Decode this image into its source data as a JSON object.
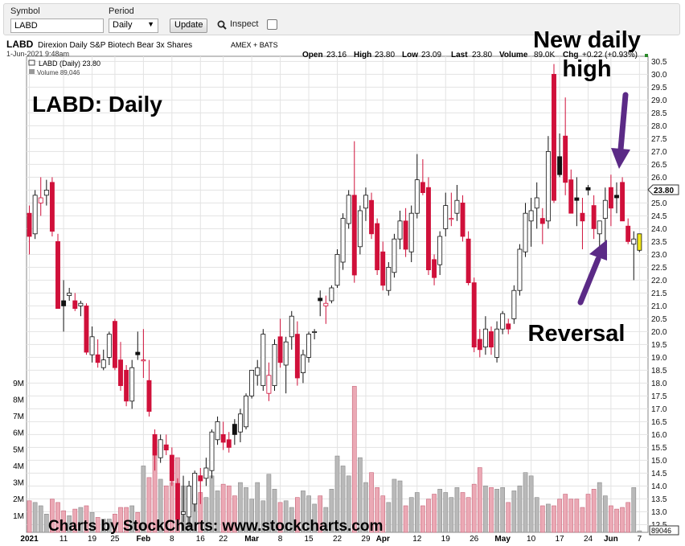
{
  "toolbar": {
    "symbol_label": "Symbol",
    "symbol_value": "LABD",
    "period_label": "Period",
    "period_value": "Daily",
    "update_label": "Update",
    "inspect_label": "Inspect"
  },
  "header": {
    "ticker": "LABD",
    "description": "Direxion Daily S&P Biotech Bear 3x Shares",
    "exchange": "AMEX + BATS",
    "datetime": "1-Jun-2021 9:48am",
    "open_label": "Open",
    "open": "23.16",
    "high_label": "High",
    "high": "23.80",
    "low_label": "Low",
    "low": "23.09",
    "last_label": "Last",
    "last": "23.80",
    "volume_label": "Volume",
    "volume": "89.0K",
    "chg_label": "Chg",
    "chg": "+0.22 (+0.93%)",
    "legend_price": "LABD (Daily) 23.80",
    "legend_volume": "Volume 89,046"
  },
  "annotations": {
    "big_title": "LABD:  Daily",
    "new_high_line1": "New daily",
    "new_high_line2": "high",
    "reversal": "Reversal",
    "watermark": "Charts by StockCharts:  www.stockcharts.com",
    "last_price_tag": "23.80",
    "last_volume_tag": "89046"
  },
  "colors": {
    "down": "#d0103a",
    "up_body": "#ffffff",
    "outline": "#111111",
    "vol_down": "#eba9b5",
    "vol_up": "#b9b9b9",
    "last_bar": "#f2e71a",
    "arrow": "#5b2a86",
    "grid": "#e3e3e3"
  },
  "chart_data": {
    "type": "candlestick",
    "title": "LABD",
    "y_range": [
      12.2,
      30.7
    ],
    "y_ticks": [
      12.5,
      13.0,
      13.5,
      14.0,
      14.5,
      15.0,
      15.5,
      16.0,
      16.5,
      17.0,
      17.5,
      18.0,
      18.5,
      19.0,
      19.5,
      20.0,
      20.5,
      21.0,
      21.5,
      22.0,
      22.5,
      23.0,
      23.5,
      24.0,
      24.5,
      25.0,
      25.5,
      26.0,
      26.5,
      27.0,
      27.5,
      28.0,
      28.5,
      29.0,
      29.5,
      30.0,
      30.5
    ],
    "volume_ticks": [
      "1M",
      "2M",
      "3M",
      "4M",
      "5M",
      "6M",
      "7M",
      "8M",
      "9M"
    ],
    "volume_tick_values": [
      1,
      2,
      3,
      4,
      5,
      6,
      7,
      8,
      9
    ],
    "volume_range": [
      0,
      9.4
    ],
    "x_labels": [
      {
        "label": "2021",
        "bar": 0
      },
      {
        "label": "11",
        "bar": 6
      },
      {
        "label": "19",
        "bar": 11
      },
      {
        "label": "25",
        "bar": 15
      },
      {
        "label": "Feb",
        "bar": 20
      },
      {
        "label": "8",
        "bar": 25
      },
      {
        "label": "16",
        "bar": 30
      },
      {
        "label": "22",
        "bar": 34
      },
      {
        "label": "Mar",
        "bar": 39
      },
      {
        "label": "8",
        "bar": 44
      },
      {
        "label": "15",
        "bar": 49
      },
      {
        "label": "22",
        "bar": 54
      },
      {
        "label": "29",
        "bar": 59
      },
      {
        "label": "Apr",
        "bar": 62
      },
      {
        "label": "12",
        "bar": 68
      },
      {
        "label": "19",
        "bar": 73
      },
      {
        "label": "26",
        "bar": 78
      },
      {
        "label": "May",
        "bar": 83
      },
      {
        "label": "10",
        "bar": 88
      },
      {
        "label": "17",
        "bar": 93
      },
      {
        "label": "24",
        "bar": 98
      },
      {
        "label": "Jun",
        "bar": 102
      },
      {
        "label": "7",
        "bar": 107
      }
    ],
    "total_slots": 109,
    "bars": [
      {
        "o": 24.6,
        "h": 24.9,
        "l": 23.0,
        "c": 23.7,
        "v": 1.9
      },
      {
        "o": 23.8,
        "h": 25.5,
        "l": 23.6,
        "c": 25.3,
        "v": 1.8
      },
      {
        "o": 25.0,
        "h": 26.0,
        "l": 24.5,
        "c": 25.2,
        "v": 1.6
      },
      {
        "o": 25.3,
        "h": 25.9,
        "l": 24.9,
        "c": 25.5,
        "v": 1.1
      },
      {
        "o": 25.8,
        "h": 26.0,
        "l": 23.7,
        "c": 23.9,
        "v": 2.0
      },
      {
        "o": 23.5,
        "h": 23.8,
        "l": 20.9,
        "c": 20.9,
        "v": 1.8
      },
      {
        "o": 21.2,
        "h": 22.0,
        "l": 20.0,
        "c": 21.0,
        "v": 1.3
      },
      {
        "o": 21.4,
        "h": 21.7,
        "l": 21.2,
        "c": 21.5,
        "v": 1.0
      },
      {
        "o": 21.2,
        "h": 21.5,
        "l": 20.8,
        "c": 20.9,
        "v": 1.4
      },
      {
        "o": 21.0,
        "h": 21.2,
        "l": 20.6,
        "c": 21.1,
        "v": 1.5
      },
      {
        "o": 21.0,
        "h": 21.1,
        "l": 19.1,
        "c": 19.2,
        "v": 1.6
      },
      {
        "o": 19.1,
        "h": 20.2,
        "l": 18.8,
        "c": 19.8,
        "v": 1.2
      },
      {
        "o": 19.1,
        "h": 19.7,
        "l": 18.6,
        "c": 18.8,
        "v": 0.9
      },
      {
        "o": 18.6,
        "h": 19.3,
        "l": 18.5,
        "c": 18.9,
        "v": 0.8
      },
      {
        "o": 19.0,
        "h": 20.0,
        "l": 18.7,
        "c": 19.9,
        "v": 0.8
      },
      {
        "o": 20.4,
        "h": 20.5,
        "l": 18.5,
        "c": 18.6,
        "v": 1.1
      },
      {
        "o": 18.9,
        "h": 19.6,
        "l": 17.7,
        "c": 17.9,
        "v": 1.5
      },
      {
        "o": 18.5,
        "h": 18.7,
        "l": 17.1,
        "c": 17.3,
        "v": 1.5
      },
      {
        "o": 17.3,
        "h": 18.9,
        "l": 17.0,
        "c": 18.6,
        "v": 1.6
      },
      {
        "o": 19.2,
        "h": 20.0,
        "l": 18.9,
        "c": 19.1,
        "v": 1.2
      },
      {
        "o": 18.9,
        "h": 20.1,
        "l": 18.2,
        "c": 18.9,
        "v": 4.0
      },
      {
        "o": 18.1,
        "h": 18.9,
        "l": 16.7,
        "c": 16.9,
        "v": 3.3
      },
      {
        "o": 16.0,
        "h": 16.2,
        "l": 14.6,
        "c": 15.2,
        "v": 5.3
      },
      {
        "o": 15.1,
        "h": 16.0,
        "l": 14.9,
        "c": 15.8,
        "v": 3.2
      },
      {
        "o": 15.6,
        "h": 16.0,
        "l": 15.2,
        "c": 15.4,
        "v": 2.8
      },
      {
        "o": 15.2,
        "h": 15.5,
        "l": 14.0,
        "c": 14.2,
        "v": 3.0
      },
      {
        "o": 14.1,
        "h": 14.3,
        "l": 12.7,
        "c": 12.7,
        "v": 4.5
      },
      {
        "o": 12.9,
        "h": 14.4,
        "l": 12.6,
        "c": 13.0,
        "v": 2.8
      },
      {
        "o": 12.8,
        "h": 14.2,
        "l": 12.4,
        "c": 14.0,
        "v": 2.7
      },
      {
        "o": 13.3,
        "h": 14.6,
        "l": 13.0,
        "c": 14.5,
        "v": 2.3
      },
      {
        "o": 14.4,
        "h": 14.7,
        "l": 13.3,
        "c": 14.2,
        "v": 2.4
      },
      {
        "o": 14.3,
        "h": 15.1,
        "l": 14.0,
        "c": 14.7,
        "v": 2.1
      },
      {
        "o": 14.6,
        "h": 16.2,
        "l": 14.3,
        "c": 16.1,
        "v": 3.4
      },
      {
        "o": 15.8,
        "h": 16.7,
        "l": 15.6,
        "c": 16.5,
        "v": 2.5
      },
      {
        "o": 16.0,
        "h": 16.5,
        "l": 15.4,
        "c": 15.7,
        "v": 2.9
      },
      {
        "o": 15.8,
        "h": 16.1,
        "l": 15.3,
        "c": 15.5,
        "v": 2.8
      },
      {
        "o": 16.4,
        "h": 16.6,
        "l": 15.6,
        "c": 16.0,
        "v": 2.2
      },
      {
        "o": 16.1,
        "h": 17.0,
        "l": 15.7,
        "c": 16.8,
        "v": 3.0
      },
      {
        "o": 16.3,
        "h": 17.6,
        "l": 16.2,
        "c": 17.5,
        "v": 2.7
      },
      {
        "o": 17.5,
        "h": 18.5,
        "l": 17.4,
        "c": 18.5,
        "v": 2.0
      },
      {
        "o": 18.3,
        "h": 18.9,
        "l": 17.9,
        "c": 18.6,
        "v": 3.0
      },
      {
        "o": 17.9,
        "h": 20.1,
        "l": 17.7,
        "c": 19.9,
        "v": 1.9
      },
      {
        "o": 17.6,
        "h": 18.8,
        "l": 17.3,
        "c": 18.3,
        "v": 3.5
      },
      {
        "o": 17.9,
        "h": 19.7,
        "l": 17.7,
        "c": 19.5,
        "v": 2.6
      },
      {
        "o": 19.8,
        "h": 20.5,
        "l": 18.6,
        "c": 18.8,
        "v": 1.8
      },
      {
        "o": 18.7,
        "h": 19.8,
        "l": 17.6,
        "c": 19.6,
        "v": 1.9
      },
      {
        "o": 19.8,
        "h": 20.8,
        "l": 19.3,
        "c": 20.6,
        "v": 1.5
      },
      {
        "o": 19.9,
        "h": 20.4,
        "l": 17.9,
        "c": 18.2,
        "v": 2.1
      },
      {
        "o": 18.4,
        "h": 19.3,
        "l": 18.0,
        "c": 19.1,
        "v": 2.5
      },
      {
        "o": 19.0,
        "h": 20.0,
        "l": 18.8,
        "c": 19.9,
        "v": 2.2
      },
      {
        "o": 20.0,
        "h": 20.1,
        "l": 19.7,
        "c": 20.0,
        "v": 1.7
      },
      {
        "o": 21.3,
        "h": 21.6,
        "l": 20.6,
        "c": 21.2,
        "v": 2.2
      },
      {
        "o": 21.0,
        "h": 21.4,
        "l": 20.3,
        "c": 21.1,
        "v": 1.5
      },
      {
        "o": 21.2,
        "h": 21.8,
        "l": 21.1,
        "c": 21.7,
        "v": 2.6
      },
      {
        "o": 21.8,
        "h": 23.2,
        "l": 21.7,
        "c": 23.0,
        "v": 4.6
      },
      {
        "o": 22.7,
        "h": 24.6,
        "l": 22.4,
        "c": 24.4,
        "v": 4.0
      },
      {
        "o": 24.2,
        "h": 25.5,
        "l": 24.0,
        "c": 25.3,
        "v": 3.4
      },
      {
        "o": 25.3,
        "h": 27.4,
        "l": 21.9,
        "c": 22.2,
        "v": 8.8
      },
      {
        "o": 23.3,
        "h": 24.9,
        "l": 23.0,
        "c": 24.7,
        "v": 4.5
      },
      {
        "o": 24.8,
        "h": 25.6,
        "l": 24.3,
        "c": 25.3,
        "v": 3.0
      },
      {
        "o": 25.1,
        "h": 25.4,
        "l": 23.6,
        "c": 23.8,
        "v": 3.6
      },
      {
        "o": 24.2,
        "h": 24.4,
        "l": 22.2,
        "c": 22.4,
        "v": 2.7
      },
      {
        "o": 23.1,
        "h": 23.5,
        "l": 21.6,
        "c": 21.8,
        "v": 2.2
      },
      {
        "o": 21.6,
        "h": 22.7,
        "l": 21.4,
        "c": 22.5,
        "v": 1.8
      },
      {
        "o": 22.3,
        "h": 23.8,
        "l": 22.1,
        "c": 23.6,
        "v": 3.2
      },
      {
        "o": 23.6,
        "h": 24.7,
        "l": 23.2,
        "c": 24.3,
        "v": 3.1
      },
      {
        "o": 24.3,
        "h": 24.8,
        "l": 22.9,
        "c": 23.2,
        "v": 1.6
      },
      {
        "o": 23.1,
        "h": 24.9,
        "l": 22.7,
        "c": 24.6,
        "v": 2.1
      },
      {
        "o": 24.6,
        "h": 26.9,
        "l": 24.4,
        "c": 25.9,
        "v": 2.4
      },
      {
        "o": 25.8,
        "h": 26.7,
        "l": 25.3,
        "c": 25.4,
        "v": 1.6
      },
      {
        "o": 25.6,
        "h": 26.0,
        "l": 22.2,
        "c": 22.4,
        "v": 2.0
      },
      {
        "o": 22.8,
        "h": 23.0,
        "l": 21.8,
        "c": 22.1,
        "v": 2.3
      },
      {
        "o": 22.6,
        "h": 23.9,
        "l": 22.2,
        "c": 23.7,
        "v": 2.6
      },
      {
        "o": 24.0,
        "h": 25.4,
        "l": 23.7,
        "c": 24.9,
        "v": 2.4
      },
      {
        "o": 24.4,
        "h": 25.4,
        "l": 24.1,
        "c": 24.4,
        "v": 2.1
      },
      {
        "o": 24.6,
        "h": 25.7,
        "l": 24.3,
        "c": 25.1,
        "v": 2.7
      },
      {
        "o": 25.0,
        "h": 25.3,
        "l": 23.5,
        "c": 23.7,
        "v": 2.4
      },
      {
        "o": 23.6,
        "h": 23.9,
        "l": 21.8,
        "c": 21.9,
        "v": 2.1
      },
      {
        "o": 21.9,
        "h": 22.1,
        "l": 19.2,
        "c": 19.4,
        "v": 2.9
      },
      {
        "o": 19.7,
        "h": 20.1,
        "l": 19.0,
        "c": 19.3,
        "v": 3.9
      },
      {
        "o": 19.4,
        "h": 20.6,
        "l": 19.1,
        "c": 20.1,
        "v": 2.8
      },
      {
        "o": 20.0,
        "h": 20.2,
        "l": 19.1,
        "c": 19.4,
        "v": 2.7
      },
      {
        "o": 19.0,
        "h": 20.4,
        "l": 18.8,
        "c": 20.1,
        "v": 2.6
      },
      {
        "o": 20.1,
        "h": 20.8,
        "l": 19.9,
        "c": 20.7,
        "v": 2.7
      },
      {
        "o": 20.3,
        "h": 20.5,
        "l": 19.9,
        "c": 20.1,
        "v": 1.8
      },
      {
        "o": 20.5,
        "h": 21.8,
        "l": 20.3,
        "c": 21.6,
        "v": 2.5
      },
      {
        "o": 21.6,
        "h": 23.4,
        "l": 21.4,
        "c": 23.2,
        "v": 2.8
      },
      {
        "o": 23.1,
        "h": 25.0,
        "l": 22.9,
        "c": 24.6,
        "v": 3.6
      },
      {
        "o": 24.3,
        "h": 25.2,
        "l": 23.3,
        "c": 24.7,
        "v": 3.4
      },
      {
        "o": 24.8,
        "h": 25.8,
        "l": 24.0,
        "c": 25.2,
        "v": 2.1
      },
      {
        "o": 24.4,
        "h": 24.8,
        "l": 23.4,
        "c": 24.2,
        "v": 1.6
      },
      {
        "o": 24.3,
        "h": 27.6,
        "l": 24.0,
        "c": 27.0,
        "v": 1.7
      },
      {
        "o": 30.0,
        "h": 30.4,
        "l": 25.0,
        "c": 25.1,
        "v": 1.6
      },
      {
        "o": 26.8,
        "h": 27.7,
        "l": 26.0,
        "c": 26.1,
        "v": 2.0
      },
      {
        "o": 27.6,
        "h": 29.1,
        "l": 25.3,
        "c": 25.8,
        "v": 2.3
      },
      {
        "o": 25.9,
        "h": 26.3,
        "l": 24.6,
        "c": 24.6,
        "v": 2.0
      },
      {
        "o": 25.2,
        "h": 26.0,
        "l": 24.1,
        "c": 25.1,
        "v": 2.0
      },
      {
        "o": 24.6,
        "h": 25.2,
        "l": 23.2,
        "c": 24.3,
        "v": 1.5
      },
      {
        "o": 25.6,
        "h": 25.7,
        "l": 25.3,
        "c": 25.5,
        "v": 2.3
      },
      {
        "o": 24.9,
        "h": 25.3,
        "l": 23.6,
        "c": 24.0,
        "v": 2.6
      },
      {
        "o": 23.8,
        "h": 24.2,
        "l": 22.9,
        "c": 24.3,
        "v": 3.0
      },
      {
        "o": 24.4,
        "h": 25.6,
        "l": 23.5,
        "c": 25.1,
        "v": 2.2
      },
      {
        "o": 25.6,
        "h": 26.1,
        "l": 24.1,
        "c": 24.8,
        "v": 1.6
      },
      {
        "o": 25.3,
        "h": 25.8,
        "l": 24.6,
        "c": 25.2,
        "v": 1.4
      },
      {
        "o": 25.8,
        "h": 26.0,
        "l": 24.3,
        "c": 24.3,
        "v": 1.5
      },
      {
        "o": 24.1,
        "h": 24.4,
        "l": 23.4,
        "c": 23.5,
        "v": 1.8
      },
      {
        "o": 23.4,
        "h": 23.9,
        "l": 22.0,
        "c": 23.6,
        "v": 2.7
      },
      {
        "o": 23.16,
        "h": 23.8,
        "l": 23.09,
        "c": 23.8,
        "v": 0.09
      }
    ]
  }
}
